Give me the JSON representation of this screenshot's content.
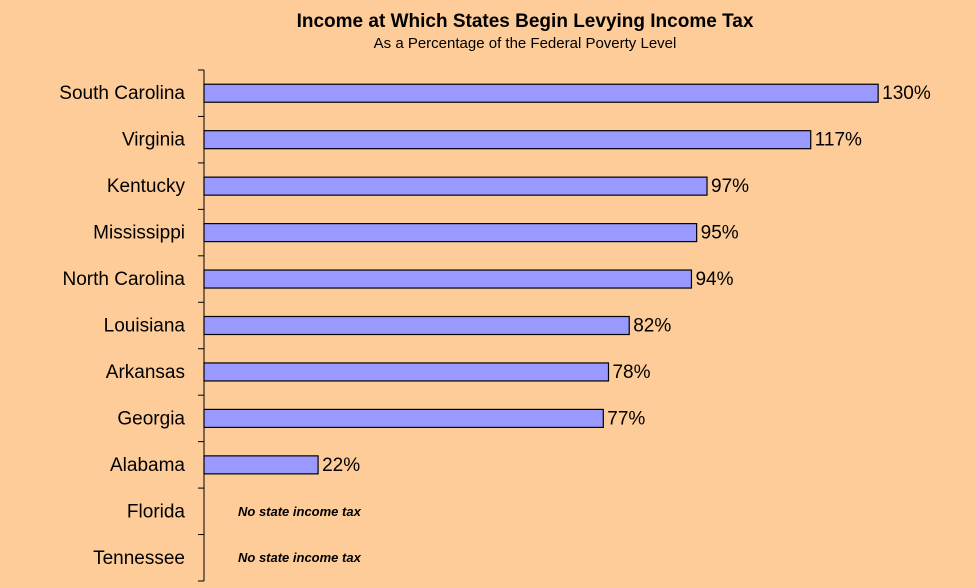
{
  "chart_data": {
    "type": "bar",
    "orientation": "horizontal",
    "title": "Income at Which States Begin Levying Income Tax",
    "subtitle": "As a Percentage of the Federal Poverty Level",
    "categories": [
      "South Carolina",
      "Virginia",
      "Kentucky",
      "Mississippi",
      "North Carolina",
      "Louisiana",
      "Arkansas",
      "Georgia",
      "Alabama",
      "Florida",
      "Tennessee"
    ],
    "values": [
      130,
      117,
      97,
      95,
      94,
      82,
      78,
      77,
      22,
      null,
      null
    ],
    "value_labels": [
      "130%",
      "117%",
      "97%",
      "95%",
      "94%",
      "82%",
      "78%",
      "77%",
      "22%",
      null,
      null
    ],
    "annotations": [
      {
        "category": "Florida",
        "text": "No state income tax"
      },
      {
        "category": "Tennessee",
        "text": "No state income tax"
      }
    ],
    "color": "#9999ff",
    "background": "#fdcc99",
    "xlim": [
      0,
      140
    ]
  }
}
